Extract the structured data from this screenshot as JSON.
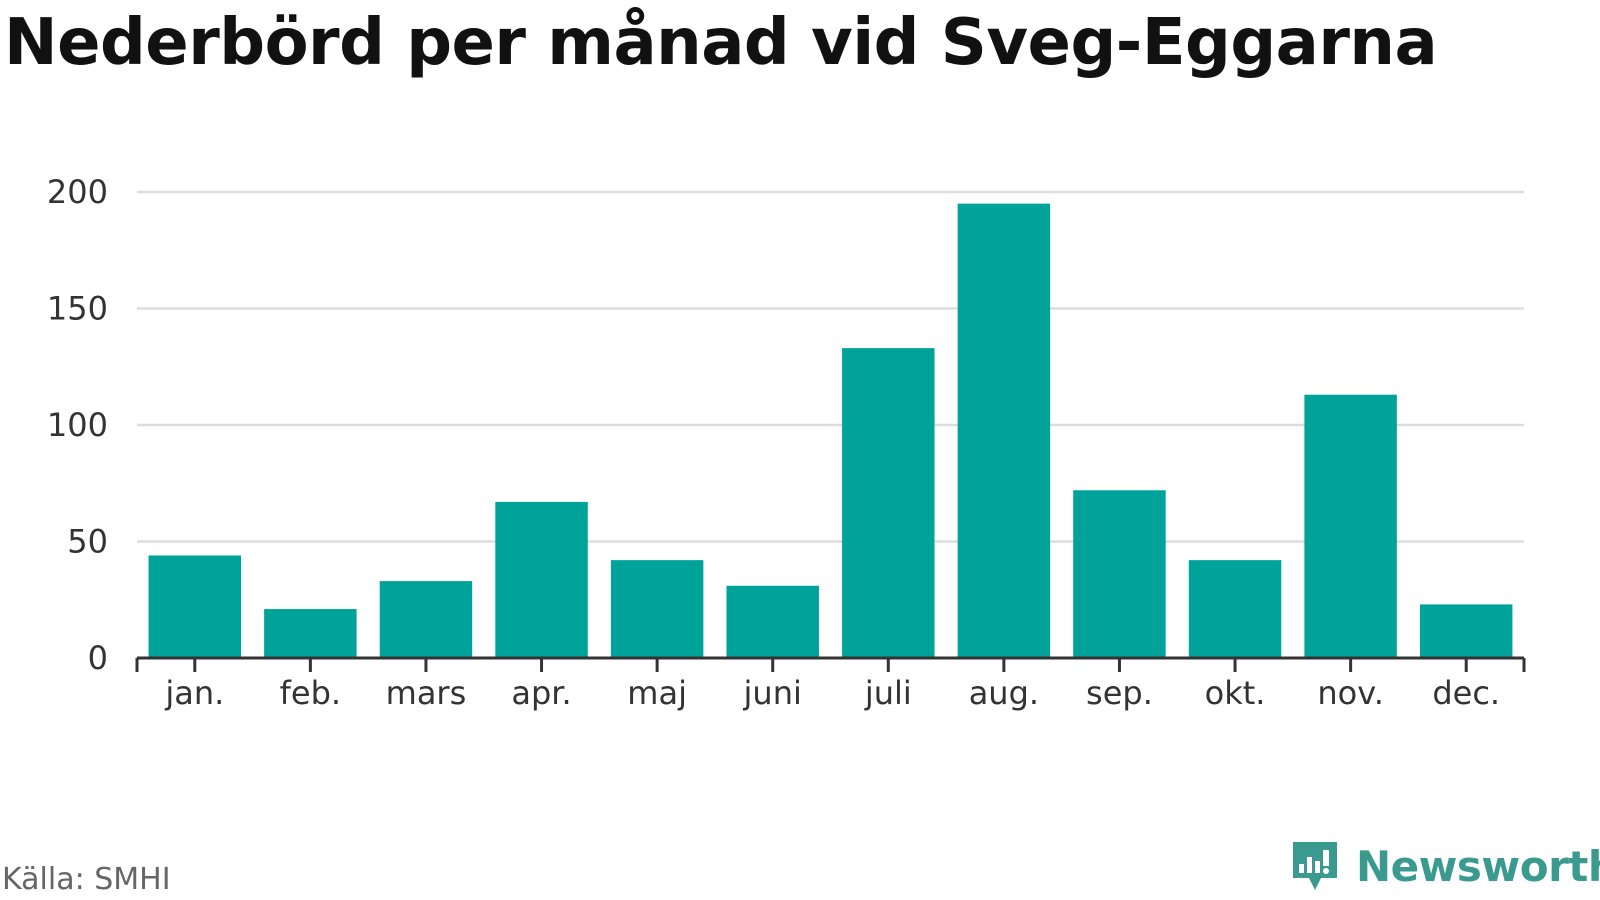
{
  "title": "Nederbörd per månad vid Sveg-Eggarna",
  "source": "Källa: SMHI",
  "brand": {
    "name": "Newsworthy",
    "icon": "newsworthy-logo-icon"
  },
  "colors": {
    "bar": "#00a39a",
    "grid": "#dddddd",
    "axis": "#333333",
    "brand": "#3a9a90"
  },
  "chart_data": {
    "type": "bar",
    "title": "Nederbörd per månad vid Sveg-Eggarna",
    "xlabel": "",
    "ylabel": "",
    "categories": [
      "jan.",
      "feb.",
      "mars",
      "apr.",
      "maj",
      "juni",
      "juli",
      "aug.",
      "sep.",
      "okt.",
      "nov.",
      "dec."
    ],
    "values": [
      44,
      21,
      33,
      67,
      42,
      31,
      133,
      195,
      72,
      42,
      113,
      23
    ],
    "ylim": [
      0,
      200
    ],
    "yticks": [
      0,
      50,
      100,
      150,
      200
    ],
    "grid": true,
    "legend": "none"
  }
}
